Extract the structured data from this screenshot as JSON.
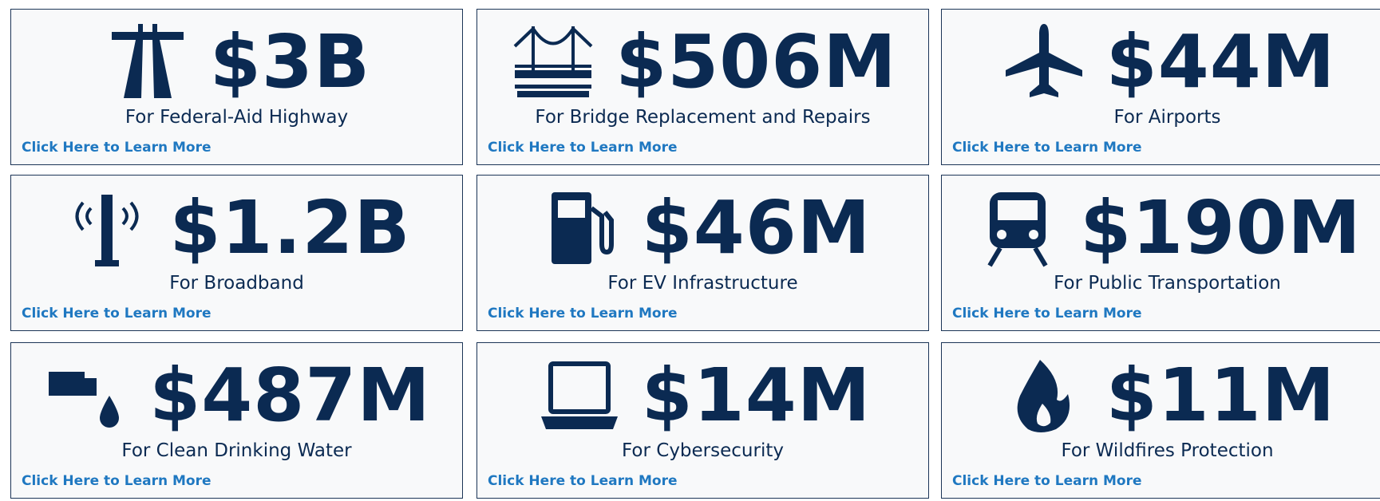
{
  "cards": [
    {
      "amount": "$3B",
      "label": "For Federal-Aid Highway",
      "link": "Click Here to Learn More"
    },
    {
      "amount": "$506M",
      "label": "For Bridge Replacement and Repairs",
      "link": "Click Here to Learn More"
    },
    {
      "amount": "$44M",
      "label": "For Airports",
      "link": "Click Here to Learn More"
    },
    {
      "amount": "$1.2B",
      "label": "For Broadband",
      "link": "Click Here to Learn More"
    },
    {
      "amount": "$46M",
      "label": "For EV Infrastructure",
      "link": "Click Here to Learn More"
    },
    {
      "amount": "$190M",
      "label": "For Public Transportation",
      "link": "Click Here to Learn More"
    },
    {
      "amount": "$487M",
      "label": "For Clean Drinking Water",
      "link": "Click Here to Learn More"
    },
    {
      "amount": "$14M",
      "label": "For Cybersecurity",
      "link": "Click Here to Learn More"
    },
    {
      "amount": "$11M",
      "label": "For Wildfires Protection",
      "link": "Click Here to Learn More"
    }
  ]
}
